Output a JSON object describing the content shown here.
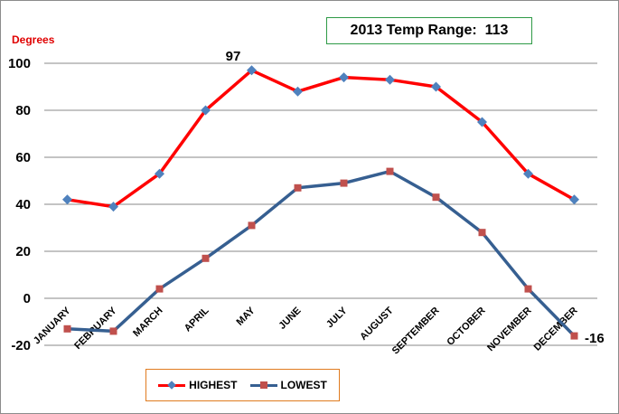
{
  "chart_data": {
    "type": "line",
    "title": "",
    "ylabel": "Degrees",
    "xlabel": "",
    "categories": [
      "JANUARY",
      "FEBRUARY",
      "MARCH",
      "APRIL",
      "MAY",
      "JUNE",
      "JULY",
      "AUGUST",
      "SEPTEMBER",
      "OCTOBER",
      "NOVEMBER",
      "DECEMBER"
    ],
    "ylim": [
      -20,
      100
    ],
    "yticks": [
      -20,
      0,
      20,
      40,
      60,
      80,
      100
    ],
    "grid": true,
    "legend_position": "bottom-left",
    "series": [
      {
        "name": "HIGHEST",
        "color": "#ff0000",
        "marker_color": "#4f81bd",
        "marker": "diamond",
        "values": [
          42,
          39,
          53,
          80,
          97,
          88,
          94,
          93,
          90,
          75,
          53,
          42
        ]
      },
      {
        "name": "LOWEST",
        "color": "#365f91",
        "marker_color": "#c0504d",
        "marker": "square",
        "values": [
          -13,
          -14,
          4,
          17,
          31,
          47,
          49,
          54,
          43,
          28,
          4,
          -16
        ]
      }
    ],
    "annotations": {
      "max_label": "97",
      "min_label": "-16",
      "range_label": "2013 Temp Range:  113"
    }
  }
}
